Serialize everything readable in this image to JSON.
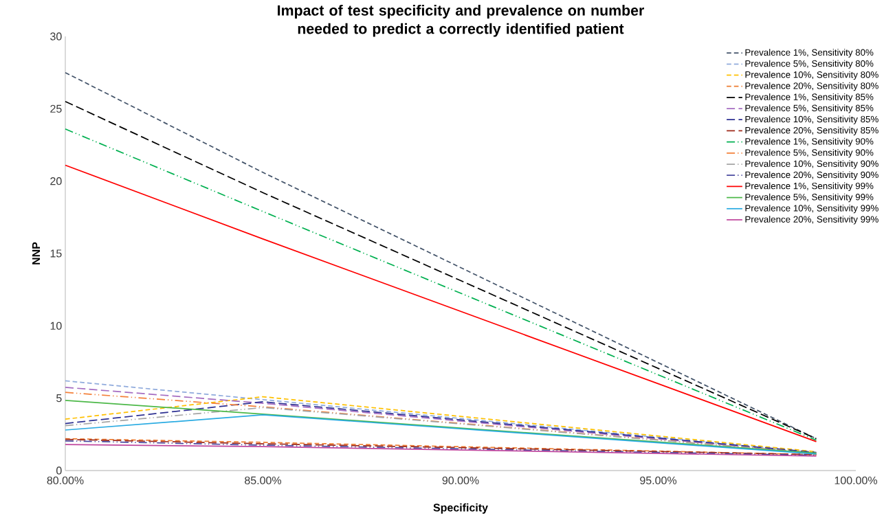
{
  "chart_data": {
    "type": "line",
    "title": "Impact of test specificity and prevalence on number needed to predict a correctly identified patient",
    "xlabel": "Specificity",
    "ylabel": "NNP",
    "x": [
      80,
      85,
      99
    ],
    "xlim": [
      80,
      100
    ],
    "xticks": [
      {
        "value": 80,
        "label": "80.00%"
      },
      {
        "value": 85,
        "label": "85.00%"
      },
      {
        "value": 90,
        "label": "90.00%"
      },
      {
        "value": 95,
        "label": "95.00%"
      },
      {
        "value": 100,
        "label": "100.00%"
      }
    ],
    "ylim": [
      0,
      30
    ],
    "yticks": [
      0,
      5,
      10,
      15,
      20,
      25,
      30
    ],
    "legend": "top right",
    "grid": false,
    "marker": "none",
    "series": [
      {
        "name": "Prevalence 1%, Sensitivity 80%",
        "color": "#44546a",
        "line_style": "dashed",
        "values": [
          27.5,
          20.6,
          2.2
        ]
      },
      {
        "name": "Prevalence 5%, Sensitivity 80%",
        "color": "#8faadc",
        "line_style": "dashed",
        "values": [
          6.2,
          4.9,
          1.25
        ]
      },
      {
        "name": "Prevalence 10%, Sensitivity 80%",
        "color": "#ffc000",
        "line_style": "dashed",
        "values": [
          3.55,
          5.1,
          1.3
        ]
      },
      {
        "name": "Prevalence 20%, Sensitivity 80%",
        "color": "#ed7d31",
        "line_style": "dashed",
        "values": [
          2.2,
          1.95,
          1.1
        ]
      },
      {
        "name": "Prevalence 1%, Sensitivity 85%",
        "color": "#000000",
        "line_style": "longdashed",
        "values": [
          25.5,
          19.2,
          2.2
        ]
      },
      {
        "name": "Prevalence 5%, Sensitivity 85%",
        "color": "#a56cc1",
        "line_style": "longdashed",
        "values": [
          5.75,
          4.65,
          1.2
        ]
      },
      {
        "name": "Prevalence 10%, Sensitivity 85%",
        "color": "#2e3192",
        "line_style": "longdashed",
        "values": [
          3.25,
          4.75,
          1.25
        ]
      },
      {
        "name": "Prevalence 20%, Sensitivity 85%",
        "color": "#9e2a1a",
        "line_style": "longdashed",
        "values": [
          2.15,
          1.85,
          1.1
        ]
      },
      {
        "name": "Prevalence 1%, Sensitivity 90%",
        "color": "#00b050",
        "line_style": "dashdotdot",
        "values": [
          23.6,
          17.9,
          2.1
        ]
      },
      {
        "name": "Prevalence 5%, Sensitivity 90%",
        "color": "#f4803a",
        "line_style": "dashdotdot",
        "values": [
          5.4,
          4.4,
          1.2
        ]
      },
      {
        "name": "Prevalence 10%, Sensitivity 90%",
        "color": "#a5a5a5",
        "line_style": "dashdotdot",
        "values": [
          3.1,
          4.35,
          1.2
        ]
      },
      {
        "name": "Prevalence 20%, Sensitivity 90%",
        "color": "#4a4aa0",
        "line_style": "dashdotdot",
        "values": [
          2.05,
          1.75,
          1.05
        ]
      },
      {
        "name": "Prevalence 1%, Sensitivity 99%",
        "color": "#ff0000",
        "line_style": "solid",
        "values": [
          21.1,
          16.0,
          2.0
        ]
      },
      {
        "name": "Prevalence 5%, Sensitivity 99%",
        "color": "#4cb848",
        "line_style": "solid",
        "values": [
          4.85,
          3.9,
          1.2
        ]
      },
      {
        "name": "Prevalence 10%, Sensitivity 99%",
        "color": "#29abe2",
        "line_style": "solid",
        "values": [
          2.8,
          3.85,
          1.15
        ]
      },
      {
        "name": "Prevalence 20%, Sensitivity 99%",
        "color": "#c0479e",
        "line_style": "solid",
        "values": [
          1.8,
          1.65,
          1.0
        ]
      }
    ]
  }
}
